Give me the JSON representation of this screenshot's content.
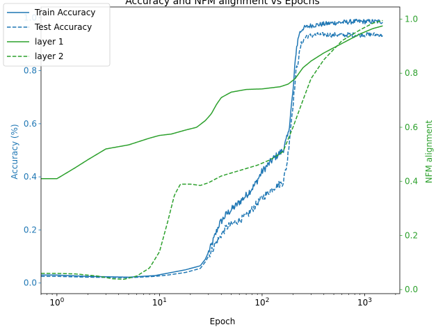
{
  "colors": {
    "accuracy": "#1f77b4",
    "nfm": "#2ca02c",
    "axis": "#000000"
  },
  "chart_data": {
    "type": "line",
    "title": "Accuracy and NFM alignment vs Epochs",
    "xlabel": "Epoch",
    "ylabel_left": "Accuracy (%)",
    "ylabel_right": "NFM alignment",
    "x_scale": "log",
    "xlim": [
      0.7,
      2200
    ],
    "ylim_left": [
      -0.04,
      1.04
    ],
    "ylim_right": [
      -0.015,
      1.045
    ],
    "x_major_ticks": [
      1,
      10,
      100,
      1000
    ],
    "x_tick_labels": [
      "10^0",
      "10^1",
      "10^2",
      "10^3"
    ],
    "y_left_ticks": [
      "0.0",
      "0.2",
      "0.4",
      "0.6",
      "0.8",
      "1.0"
    ],
    "y_right_ticks": [
      "0.0",
      "0.2",
      "0.4",
      "0.6",
      "0.8",
      "1.0"
    ],
    "grid": false,
    "legend_position": "top-left",
    "series": [
      {
        "name": "Train Accuracy",
        "axis": "left",
        "color": "#1f77b4",
        "style": "solid",
        "noisy": true,
        "points": [
          [
            0.7,
            0.03
          ],
          [
            1,
            0.03
          ],
          [
            2,
            0.025
          ],
          [
            5,
            0.022
          ],
          [
            9,
            0.028
          ],
          [
            12,
            0.037
          ],
          [
            18,
            0.05
          ],
          [
            25,
            0.065
          ],
          [
            28,
            0.09
          ],
          [
            32,
            0.14
          ],
          [
            38,
            0.22
          ],
          [
            45,
            0.26
          ],
          [
            55,
            0.29
          ],
          [
            70,
            0.33
          ],
          [
            85,
            0.37
          ],
          [
            100,
            0.42
          ],
          [
            130,
            0.47
          ],
          [
            160,
            0.5
          ],
          [
            180,
            0.56
          ],
          [
            200,
            0.72
          ],
          [
            215,
            0.88
          ],
          [
            230,
            0.94
          ],
          [
            250,
            0.96
          ],
          [
            300,
            0.97
          ],
          [
            500,
            0.98
          ],
          [
            800,
            0.985
          ],
          [
            1000,
            0.985
          ],
          [
            1500,
            0.985
          ]
        ]
      },
      {
        "name": "Test Accuracy",
        "axis": "left",
        "color": "#1f77b4",
        "style": "dashed",
        "noisy": true,
        "points": [
          [
            0.7,
            0.025
          ],
          [
            1,
            0.025
          ],
          [
            2,
            0.022
          ],
          [
            5,
            0.02
          ],
          [
            9,
            0.025
          ],
          [
            12,
            0.03
          ],
          [
            18,
            0.04
          ],
          [
            25,
            0.055
          ],
          [
            28,
            0.08
          ],
          [
            32,
            0.12
          ],
          [
            38,
            0.17
          ],
          [
            45,
            0.21
          ],
          [
            55,
            0.23
          ],
          [
            70,
            0.25
          ],
          [
            85,
            0.29
          ],
          [
            100,
            0.32
          ],
          [
            130,
            0.36
          ],
          [
            160,
            0.38
          ],
          [
            175,
            0.45
          ],
          [
            195,
            0.63
          ],
          [
            215,
            0.8
          ],
          [
            240,
            0.9
          ],
          [
            270,
            0.93
          ],
          [
            350,
            0.935
          ],
          [
            600,
            0.935
          ],
          [
            1000,
            0.935
          ],
          [
            1500,
            0.935
          ]
        ]
      },
      {
        "name": "layer 1",
        "axis": "right",
        "color": "#2ca02c",
        "style": "solid",
        "noisy": false,
        "points": [
          [
            0.7,
            0.41
          ],
          [
            1,
            0.41
          ],
          [
            1.5,
            0.45
          ],
          [
            2,
            0.48
          ],
          [
            3,
            0.52
          ],
          [
            5,
            0.535
          ],
          [
            8,
            0.56
          ],
          [
            10,
            0.57
          ],
          [
            13,
            0.575
          ],
          [
            18,
            0.59
          ],
          [
            23,
            0.6
          ],
          [
            28,
            0.625
          ],
          [
            32,
            0.65
          ],
          [
            36,
            0.685
          ],
          [
            40,
            0.71
          ],
          [
            50,
            0.73
          ],
          [
            70,
            0.74
          ],
          [
            100,
            0.742
          ],
          [
            150,
            0.75
          ],
          [
            180,
            0.76
          ],
          [
            210,
            0.78
          ],
          [
            250,
            0.82
          ],
          [
            300,
            0.845
          ],
          [
            400,
            0.875
          ],
          [
            600,
            0.91
          ],
          [
            900,
            0.945
          ],
          [
            1200,
            0.965
          ],
          [
            1500,
            0.975
          ]
        ]
      },
      {
        "name": "layer 2",
        "axis": "right",
        "color": "#2ca02c",
        "style": "dashed",
        "noisy": false,
        "points": [
          [
            0.7,
            0.06
          ],
          [
            1,
            0.06
          ],
          [
            1.5,
            0.058
          ],
          [
            2.5,
            0.05
          ],
          [
            3.5,
            0.04
          ],
          [
            4.5,
            0.038
          ],
          [
            6,
            0.05
          ],
          [
            8,
            0.08
          ],
          [
            10,
            0.14
          ],
          [
            12,
            0.25
          ],
          [
            14,
            0.35
          ],
          [
            16,
            0.39
          ],
          [
            20,
            0.39
          ],
          [
            25,
            0.385
          ],
          [
            30,
            0.395
          ],
          [
            40,
            0.42
          ],
          [
            60,
            0.44
          ],
          [
            90,
            0.46
          ],
          [
            120,
            0.48
          ],
          [
            160,
            0.51
          ],
          [
            200,
            0.6
          ],
          [
            250,
            0.7
          ],
          [
            300,
            0.78
          ],
          [
            400,
            0.85
          ],
          [
            600,
            0.92
          ],
          [
            900,
            0.96
          ],
          [
            1200,
            0.985
          ],
          [
            1500,
            0.995
          ]
        ]
      }
    ]
  }
}
